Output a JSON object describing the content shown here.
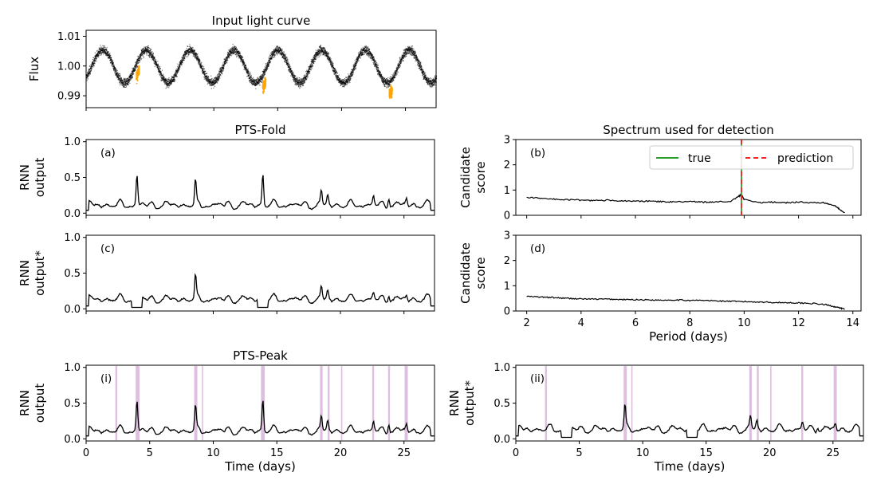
{
  "chart_data": [
    {
      "id": "lightcurve",
      "type": "scatter",
      "title": "Input light curve",
      "xlabel": "",
      "ylabel": "Flux",
      "xlim": [
        0,
        27.4
      ],
      "ylim": [
        0.986,
        1.012
      ],
      "yticks": [
        "1.01",
        "1.00",
        "0.99"
      ],
      "yticks_values": [
        1.01,
        1.0,
        0.99
      ],
      "series": [
        {
          "role": "flux",
          "color": "#000000",
          "waveform": {
            "mean": 1.0,
            "amplitude": 0.0055,
            "period_days": 3.43,
            "noise": 0.0022
          }
        },
        {
          "role": "transits",
          "color": "#ffa500",
          "x": [
            4.0,
            13.9,
            23.8
          ],
          "depth": 0.007
        }
      ]
    },
    {
      "id": "a",
      "type": "line",
      "title": "PTS-Fold",
      "panel_label": "(a)",
      "ylabel_lines": [
        "RNN",
        "output"
      ],
      "xlim": [
        0,
        27.4
      ],
      "ylim": [
        -0.03,
        1.03
      ],
      "yticks": [
        "1.0",
        "0.5",
        "0.0"
      ],
      "yticks_values": [
        1.0,
        0.5,
        0.0
      ],
      "base": {
        "mean": 0.1,
        "amplitude": 0.05
      },
      "peaks": [
        {
          "x": 4.0,
          "y": 0.56
        },
        {
          "x": 8.6,
          "y": 0.46
        },
        {
          "x": 13.9,
          "y": 0.61
        },
        {
          "x": 18.5,
          "y": 0.33
        },
        {
          "x": 19.0,
          "y": 0.28
        },
        {
          "x": 22.6,
          "y": 0.27
        },
        {
          "x": 23.8,
          "y": 0.29
        },
        {
          "x": 25.2,
          "y": 0.25
        }
      ],
      "color": "#000000"
    },
    {
      "id": "c",
      "type": "line",
      "panel_label": "(c)",
      "ylabel_lines": [
        "RNN",
        "output*"
      ],
      "xlim": [
        0,
        27.4
      ],
      "ylim": [
        -0.03,
        1.03
      ],
      "yticks": [
        "1.0",
        "0.5",
        "0.0"
      ],
      "yticks_values": [
        1.0,
        0.5,
        0.0
      ],
      "base": {
        "mean": 0.12,
        "amplitude": 0.05
      },
      "peaks": [
        {
          "x": 8.6,
          "y": 0.47
        },
        {
          "x": 18.5,
          "y": 0.33
        },
        {
          "x": 19.0,
          "y": 0.28
        },
        {
          "x": 22.6,
          "y": 0.26
        },
        {
          "x": 23.8,
          "y": 0.26
        },
        {
          "x": 25.2,
          "y": 0.22
        }
      ],
      "gaps": [
        {
          "from": 3.6,
          "to": 4.4
        },
        {
          "from": 13.5,
          "to": 14.3
        }
      ],
      "color": "#000000"
    },
    {
      "id": "b",
      "type": "line",
      "title": "Spectrum used for detection",
      "panel_label": "(b)",
      "ylabel_lines": [
        "Candidate",
        "score"
      ],
      "xlim": [
        1.6,
        14.3
      ],
      "ylim": [
        0,
        3
      ],
      "yticks": [
        "3",
        "2",
        "1",
        "0"
      ],
      "yticks_values": [
        3,
        2,
        1,
        0
      ],
      "x": [
        2.0,
        2.5,
        3.0,
        3.5,
        4.0,
        4.5,
        5.0,
        5.5,
        6.0,
        6.5,
        7.0,
        7.5,
        8.0,
        8.5,
        9.0,
        9.5,
        9.8,
        9.9,
        10.0,
        10.5,
        11.0,
        11.5,
        12.0,
        12.5,
        13.0,
        13.3,
        13.5,
        13.7
      ],
      "values": [
        0.7,
        0.68,
        0.64,
        0.62,
        0.6,
        0.58,
        0.6,
        0.57,
        0.55,
        0.56,
        0.54,
        0.53,
        0.55,
        0.52,
        0.53,
        0.56,
        0.75,
        0.82,
        0.62,
        0.5,
        0.52,
        0.5,
        0.52,
        0.5,
        0.49,
        0.4,
        0.25,
        0.1
      ],
      "vlines": [
        {
          "name": "true",
          "x": 9.9,
          "color": "#2ca02c",
          "style": "solid"
        },
        {
          "name": "prediction",
          "x": 9.9,
          "color": "#ff2020",
          "style": "dashed"
        }
      ],
      "legend": [
        "true",
        "prediction"
      ],
      "legend_position": "upper right",
      "color": "#000000"
    },
    {
      "id": "d",
      "type": "line",
      "panel_label": "(d)",
      "xlabel": "Period (days)",
      "ylabel_lines": [
        "Candidate",
        "score"
      ],
      "xlim": [
        1.6,
        14.3
      ],
      "ylim": [
        0,
        3
      ],
      "xticks": [
        "2",
        "4",
        "6",
        "8",
        "10",
        "12",
        "14"
      ],
      "xticks_values": [
        2,
        4,
        6,
        8,
        10,
        12,
        14
      ],
      "yticks": [
        "3",
        "2",
        "1",
        "0"
      ],
      "yticks_values": [
        3,
        2,
        1,
        0
      ],
      "x": [
        2.0,
        2.5,
        3.0,
        3.5,
        4.0,
        4.5,
        5.0,
        5.5,
        6.0,
        6.5,
        7.0,
        7.5,
        8.0,
        8.5,
        9.0,
        9.5,
        10.0,
        10.5,
        11.0,
        11.5,
        12.0,
        12.5,
        13.0,
        13.3,
        13.5,
        13.7
      ],
      "values": [
        0.58,
        0.55,
        0.53,
        0.5,
        0.48,
        0.47,
        0.47,
        0.45,
        0.45,
        0.44,
        0.43,
        0.44,
        0.42,
        0.42,
        0.4,
        0.38,
        0.37,
        0.36,
        0.34,
        0.33,
        0.32,
        0.3,
        0.25,
        0.18,
        0.12,
        0.08
      ],
      "color": "#000000"
    },
    {
      "id": "i",
      "type": "line",
      "title": "PTS-Peak",
      "panel_label": "(i)",
      "xlabel": "Time (days)",
      "ylabel_lines": [
        "RNN",
        "output"
      ],
      "xlim": [
        0,
        27.4
      ],
      "ylim": [
        -0.03,
        1.03
      ],
      "xticks": [
        "0",
        "5",
        "10",
        "15",
        "20",
        "25"
      ],
      "xticks_values": [
        0,
        5,
        10,
        15,
        20,
        25
      ],
      "yticks": [
        "1.0",
        "0.5",
        "0.0"
      ],
      "yticks_values": [
        1.0,
        0.5,
        0.0
      ],
      "base": {
        "mean": 0.1,
        "amplitude": 0.05
      },
      "peaks": [
        {
          "x": 4.0,
          "y": 0.56
        },
        {
          "x": 8.6,
          "y": 0.46
        },
        {
          "x": 13.9,
          "y": 0.61
        },
        {
          "x": 18.5,
          "y": 0.33
        },
        {
          "x": 19.0,
          "y": 0.28
        },
        {
          "x": 22.6,
          "y": 0.27
        },
        {
          "x": 23.8,
          "y": 0.29
        },
        {
          "x": 25.2,
          "y": 0.25
        }
      ],
      "highlight_spans": [
        [
          2.3,
          2.45
        ],
        [
          3.9,
          4.2
        ],
        [
          8.5,
          8.75
        ],
        [
          9.1,
          9.2
        ],
        [
          13.75,
          14.05
        ],
        [
          18.4,
          18.6
        ],
        [
          19.0,
          19.15
        ],
        [
          20.05,
          20.15
        ],
        [
          22.5,
          22.65
        ],
        [
          23.75,
          23.9
        ],
        [
          25.05,
          25.3
        ]
      ],
      "highlight_color": "#c58bc5",
      "color": "#000000"
    },
    {
      "id": "ii",
      "type": "line",
      "panel_label": "(ii)",
      "xlabel": "Time (days)",
      "ylabel_lines": [
        "RNN",
        "output*"
      ],
      "xlim": [
        0,
        27.4
      ],
      "ylim": [
        -0.03,
        1.03
      ],
      "xticks": [
        "0",
        "5",
        "10",
        "15",
        "20",
        "25"
      ],
      "xticks_values": [
        0,
        5,
        10,
        15,
        20,
        25
      ],
      "yticks": [
        "1.0",
        "0.5",
        "0.0"
      ],
      "yticks_values": [
        1.0,
        0.5,
        0.0
      ],
      "base": {
        "mean": 0.12,
        "amplitude": 0.05
      },
      "peaks": [
        {
          "x": 8.6,
          "y": 0.47
        },
        {
          "x": 18.5,
          "y": 0.33
        },
        {
          "x": 19.0,
          "y": 0.28
        },
        {
          "x": 22.6,
          "y": 0.26
        },
        {
          "x": 23.8,
          "y": 0.24
        },
        {
          "x": 25.2,
          "y": 0.25
        }
      ],
      "gaps": [
        {
          "from": 3.6,
          "to": 4.4
        },
        {
          "from": 13.5,
          "to": 14.3
        }
      ],
      "highlight_spans": [
        [
          2.3,
          2.45
        ],
        [
          8.5,
          8.75
        ],
        [
          9.1,
          9.2
        ],
        [
          18.4,
          18.6
        ],
        [
          19.0,
          19.15
        ],
        [
          20.05,
          20.15
        ],
        [
          22.5,
          22.65
        ],
        [
          25.05,
          25.3
        ]
      ],
      "highlight_color": "#c58bc5",
      "color": "#000000"
    }
  ]
}
